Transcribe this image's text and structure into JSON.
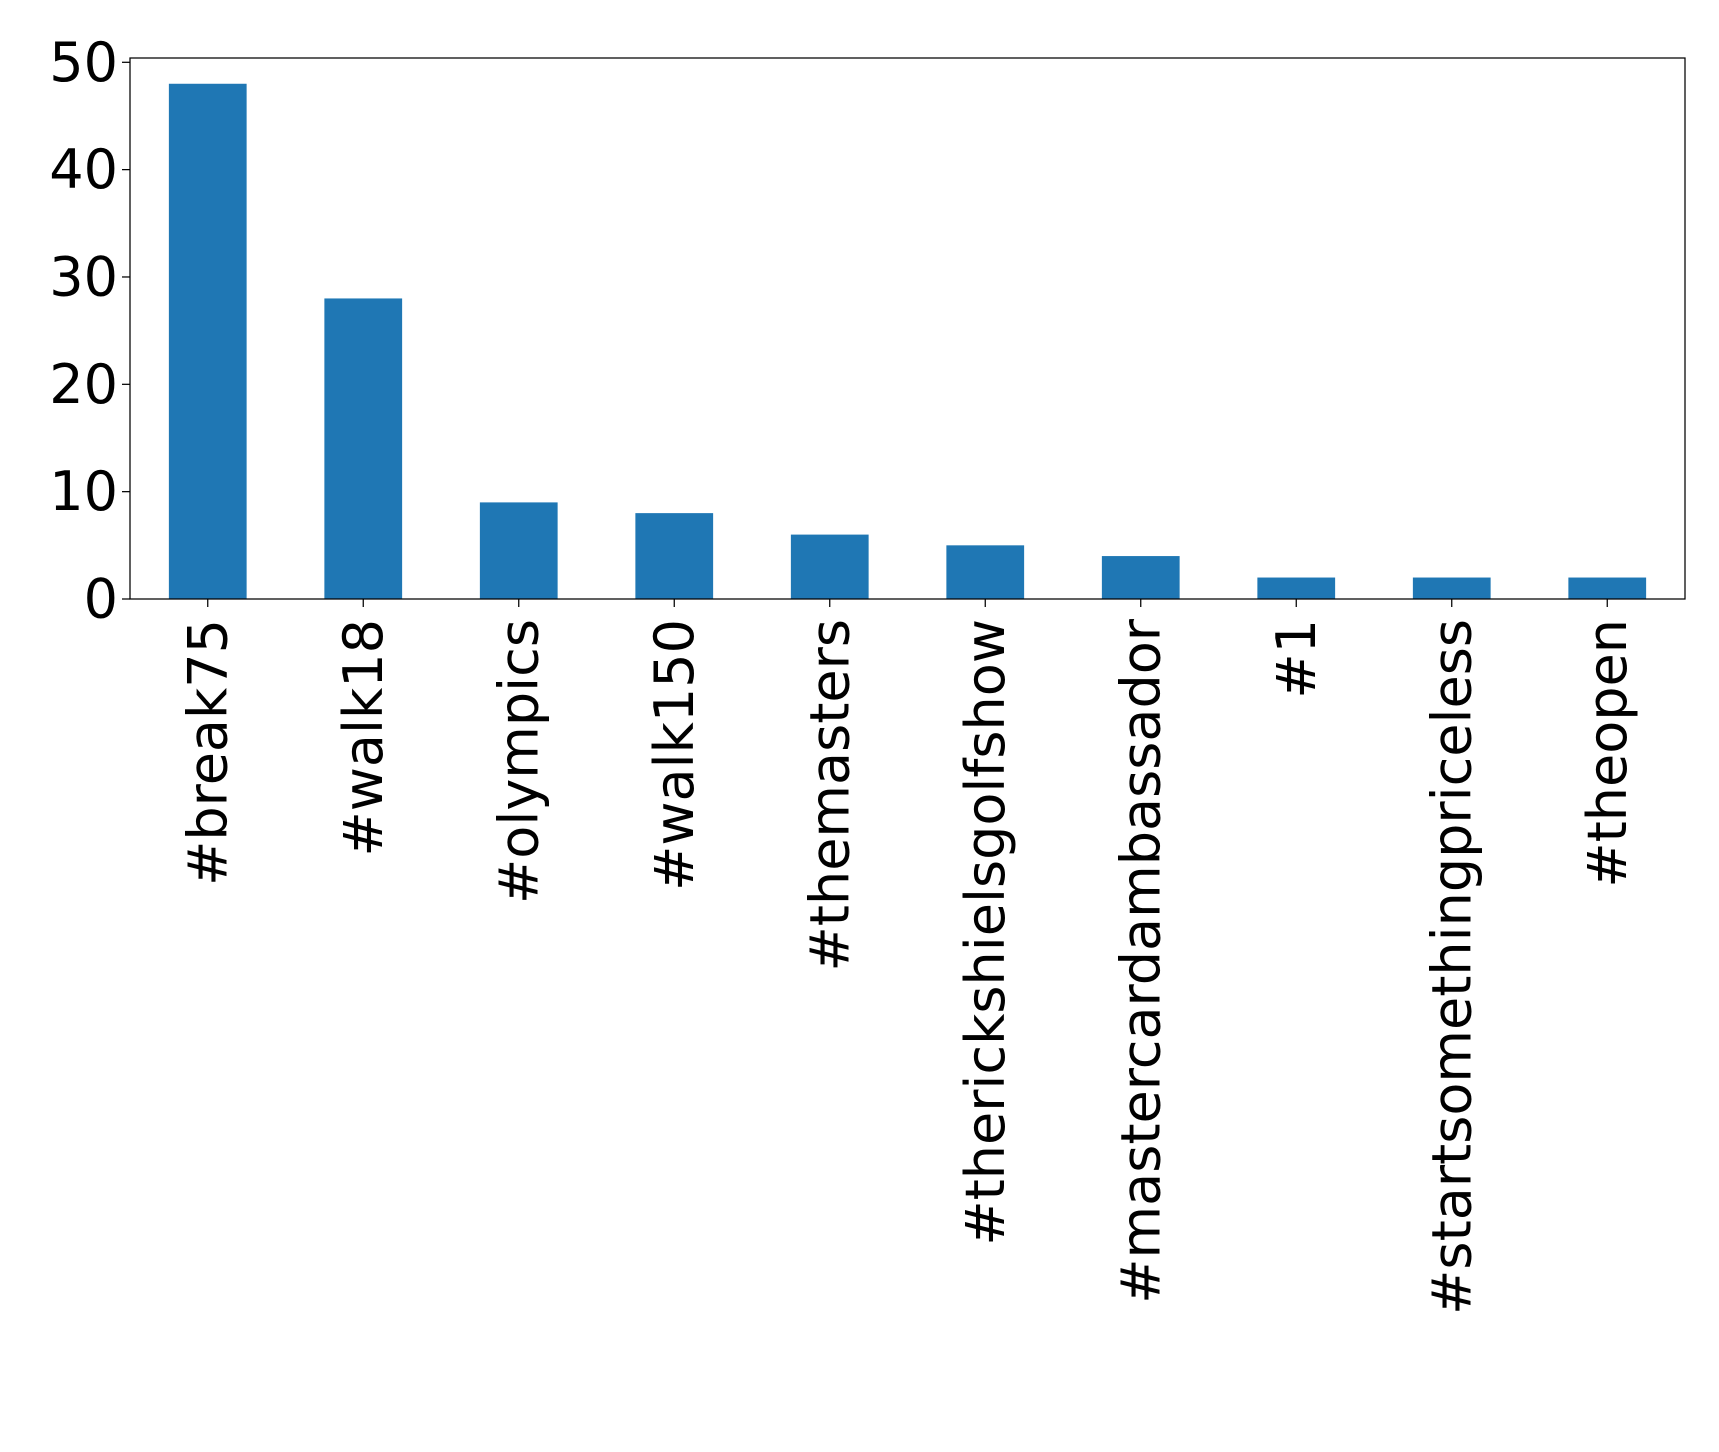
{
  "chart_data": {
    "type": "bar",
    "title": "",
    "xlabel": "",
    "ylabel": "",
    "categories": [
      "#break75",
      "#walk18",
      "#olympics",
      "#walk150",
      "#themasters",
      "#therickshielsgolfshow",
      "#mastercardambassador",
      "#1",
      "#startsomethingpriceless",
      "#theopen"
    ],
    "values": [
      48,
      28,
      9,
      8,
      6,
      5,
      4,
      2,
      2,
      2
    ],
    "ylim": [
      0,
      50.4
    ],
    "yticks": [
      0,
      10,
      20,
      30,
      40,
      50
    ],
    "ytick_labels": [
      "0",
      "10",
      "20",
      "30",
      "40",
      "50"
    ],
    "grid": false,
    "legend": "none",
    "bar_color": "#1f77b4"
  }
}
